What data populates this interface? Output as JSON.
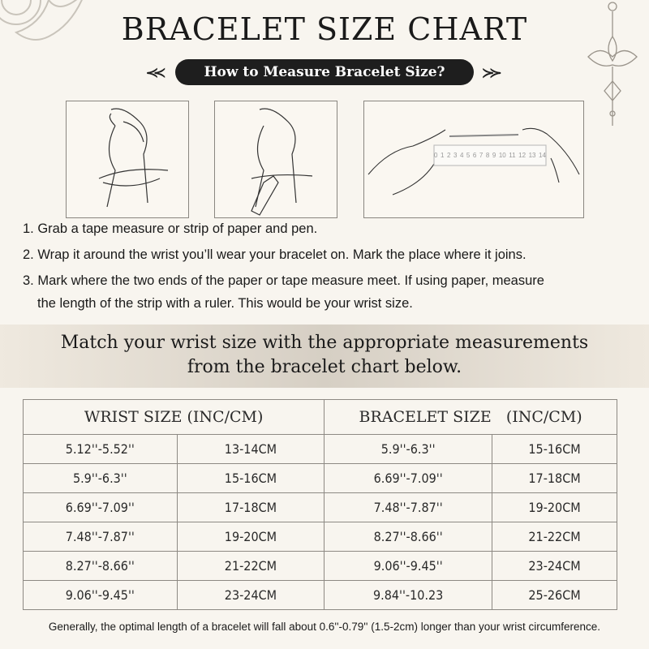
{
  "title": "BRACELET SIZE CHART",
  "subtitle": "How to Measure Bracelet Size?",
  "ruler_labels": [
    "0",
    "1",
    "2",
    "3",
    "4",
    "5",
    "6",
    "7",
    "8",
    "9",
    "10",
    "11",
    "12",
    "13",
    "14"
  ],
  "steps": [
    "1. Grab a tape measure or strip of paper and pen.",
    "2. Wrap it around the wrist you’ll wear your bracelet on. Mark the place where it joins.",
    "3. Mark where the two ends of the paper or tape measure meet. If using paper, measure",
    "the length of the strip with a ruler. This would be your wrist size."
  ],
  "band": [
    "Match your wrist size with the appropriate measurements",
    "from the bracelet chart below."
  ],
  "table": {
    "headers": [
      "WRIST SIZE (INC/CM)",
      "BRACELET SIZE   (INC/CM)"
    ],
    "rows": [
      [
        "5.12''-5.52''",
        "13-14CM",
        "5.9''-6.3''",
        "15-16CM"
      ],
      [
        "5.9''-6.3''",
        "15-16CM",
        "6.69''-7.09''",
        "17-18CM"
      ],
      [
        "6.69''-7.09''",
        "17-18CM",
        "7.48''-7.87''",
        "19-20CM"
      ],
      [
        "7.48''-7.87''",
        "19-20CM",
        "8.27''-8.66''",
        "21-22CM"
      ],
      [
        "8.27''-8.66''",
        "21-22CM",
        "9.06''-9.45''",
        "23-24CM"
      ],
      [
        "9.06''-9.45''",
        "23-24CM",
        "9.84''-10.23",
        "25-26CM"
      ]
    ]
  },
  "footnote": "Generally, the optimal length of a bracelet will fall about 0.6''-0.79'' (1.5-2cm) longer than your wrist circumference.",
  "colors": {
    "background": "#f8f5ef",
    "pill": "#1e1e1e",
    "border": "#8d8983"
  }
}
